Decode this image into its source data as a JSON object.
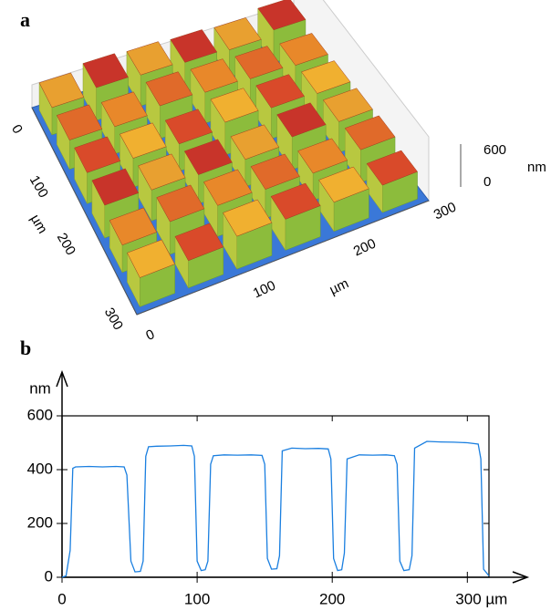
{
  "panel_a": {
    "label": "a",
    "left_axis": {
      "ticks": [
        "0",
        "100",
        "200",
        "300"
      ],
      "unit": "µm"
    },
    "bottom_axis": {
      "ticks": [
        "0",
        "100",
        "200",
        "300"
      ],
      "unit": "µm"
    },
    "height_axis": {
      "ticks": [
        "600",
        "0"
      ],
      "unit": "nm"
    }
  },
  "chart_data": {
    "type": "line",
    "panel_label": "b",
    "y_label": "nm",
    "color": "#1a7fe0",
    "x": [
      0,
      3,
      6,
      8,
      10,
      20,
      30,
      40,
      46,
      48,
      51,
      54,
      58,
      60,
      62,
      64,
      70,
      80,
      90,
      96,
      98,
      100,
      103,
      106,
      108,
      110,
      112,
      120,
      130,
      140,
      148,
      150,
      152,
      155,
      159,
      161,
      163,
      170,
      180,
      190,
      197,
      199,
      201,
      204,
      207,
      209,
      211,
      220,
      230,
      240,
      246,
      248,
      250,
      253,
      257,
      259,
      261,
      270,
      280,
      290,
      300,
      308,
      310,
      312,
      316
    ],
    "values": [
      0,
      5,
      100,
      405,
      410,
      412,
      410,
      412,
      410,
      380,
      60,
      20,
      22,
      60,
      450,
      485,
      487,
      488,
      490,
      488,
      450,
      60,
      25,
      28,
      60,
      420,
      452,
      455,
      454,
      455,
      453,
      420,
      70,
      30,
      32,
      80,
      470,
      480,
      478,
      479,
      477,
      440,
      70,
      25,
      28,
      90,
      440,
      455,
      454,
      455,
      452,
      420,
      60,
      25,
      28,
      80,
      480,
      505,
      503,
      502,
      500,
      495,
      440,
      30,
      5
    ],
    "xlim": [
      0,
      316
    ],
    "ylim": [
      0,
      600
    ],
    "xticks": [
      0,
      100,
      200,
      {
        "value": 300,
        "label": "300 µm"
      }
    ],
    "yticks": [
      0,
      200,
      400,
      600
    ]
  }
}
